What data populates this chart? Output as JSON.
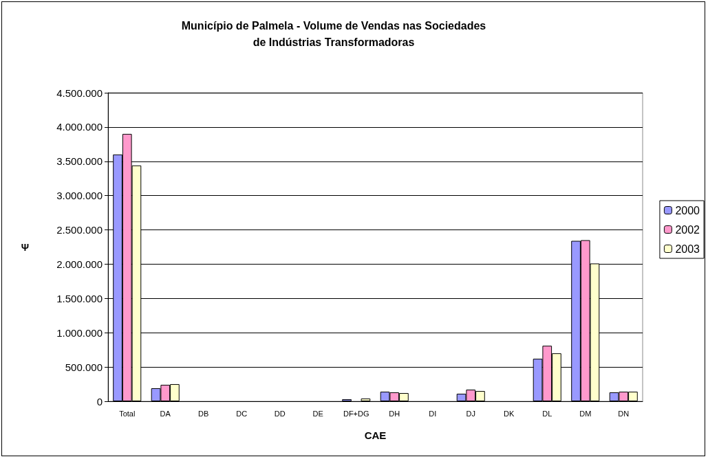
{
  "chart_data": {
    "type": "bar",
    "title": "Município de Palmela - Volume de Vendas nas Sociedades\nde Indústrias Transformadoras",
    "xlabel": "CAE",
    "ylabel": "Ψ",
    "categories": [
      "Total",
      "DA",
      "DB",
      "DC",
      "DD",
      "DE",
      "DF+DG",
      "DH",
      "DI",
      "DJ",
      "DK",
      "DL",
      "DM",
      "DN"
    ],
    "series": [
      {
        "name": "2000",
        "color": "#9999ff",
        "values": [
          3600000,
          190000,
          0,
          0,
          0,
          0,
          30000,
          140000,
          0,
          110000,
          0,
          620000,
          2340000,
          130000
        ]
      },
      {
        "name": "2002",
        "color": "#ff99cc",
        "values": [
          3900000,
          240000,
          0,
          0,
          0,
          0,
          0,
          130000,
          0,
          170000,
          0,
          810000,
          2350000,
          140000
        ]
      },
      {
        "name": "2003",
        "color": "#ffffcc",
        "values": [
          3440000,
          250000,
          0,
          0,
          0,
          0,
          40000,
          120000,
          0,
          150000,
          0,
          700000,
          2010000,
          140000
        ]
      }
    ],
    "ylim": [
      0,
      4500000
    ],
    "yticks": [
      0,
      {
        "value": 500000,
        "label": "500.000"
      },
      {
        "value": 1000000,
        "label": "1.000.000"
      },
      {
        "value": 1500000,
        "label": "1.500.000"
      },
      {
        "value": 2000000,
        "label": "2.000.000"
      },
      {
        "value": 2500000,
        "label": "2.500.000"
      },
      {
        "value": 3000000,
        "label": "3.000.000"
      },
      {
        "value": 3500000,
        "label": "3.500.000"
      },
      {
        "value": 4000000,
        "label": "4.000.000"
      },
      {
        "value": 4500000,
        "label": "4.500.000"
      }
    ],
    "grid": "y",
    "legend": "right"
  }
}
